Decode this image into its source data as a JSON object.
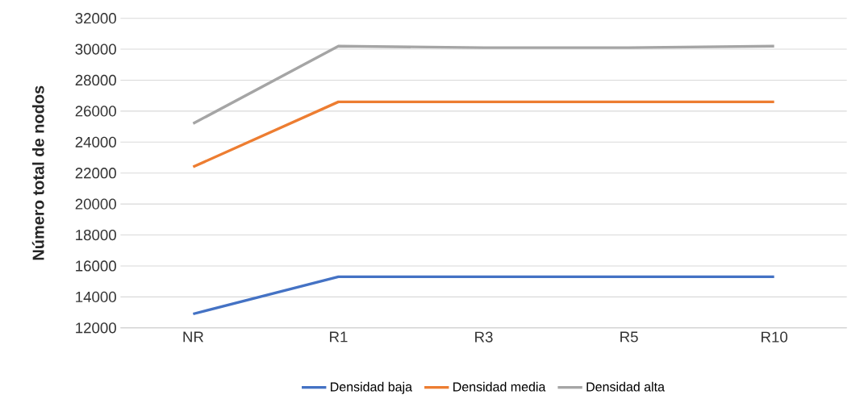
{
  "chart_data": {
    "type": "line",
    "ylabel": "Número total de nodos",
    "categories": [
      "NR",
      "R1",
      "R3",
      "R5",
      "R10"
    ],
    "series": [
      {
        "name": "Densidad baja",
        "color": "#4472c4",
        "values": [
          12900,
          15300,
          15300,
          15300,
          15300
        ]
      },
      {
        "name": "Densidad media",
        "color": "#ed7d31",
        "values": [
          22400,
          26600,
          26600,
          26600,
          26600
        ]
      },
      {
        "name": "Densidad alta",
        "color": "#a5a5a5",
        "values": [
          25200,
          30200,
          30100,
          30100,
          30200
        ]
      }
    ],
    "ylim": [
      12000,
      32000
    ],
    "yticks": [
      12000,
      14000,
      16000,
      18000,
      20000,
      22000,
      24000,
      26000,
      28000,
      30000,
      32000
    ],
    "grid": "y",
    "legend": "bottom",
    "marker": "none",
    "line_style": "solid"
  }
}
